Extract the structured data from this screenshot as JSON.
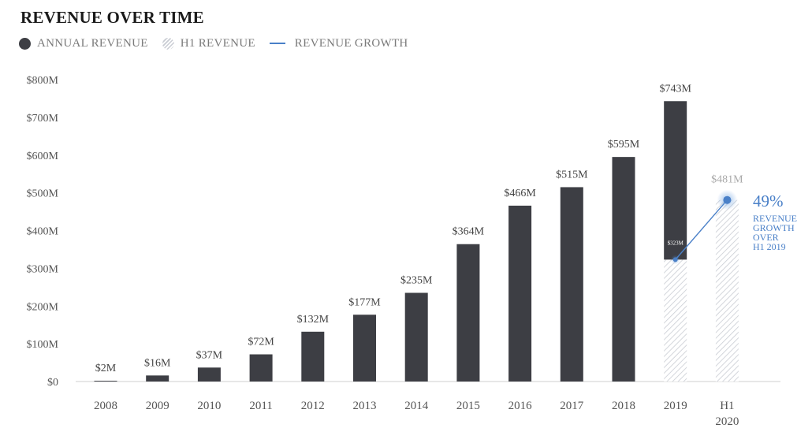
{
  "title": "REVENUE OVER TIME",
  "legend": {
    "annual": "ANNUAL REVENUE",
    "h1": "H1 REVENUE",
    "growth": "REVENUE GROWTH"
  },
  "colors": {
    "annual": "#3d3e44",
    "h1_hatch": "#c9ccd3",
    "growth": "#4a80c8",
    "axis_text": "#555555",
    "h1_label": "#a9a9a9"
  },
  "chart_data": {
    "type": "bar",
    "title": "REVENUE OVER TIME",
    "xlabel": "",
    "ylabel": "",
    "ylim": [
      0,
      800
    ],
    "y_ticks": [
      "$0",
      "$100M",
      "$200M",
      "$300M",
      "$400M",
      "$500M",
      "$600M",
      "$700M",
      "$800M"
    ],
    "grid": false,
    "legend_position": "top-left",
    "categories": [
      "2008",
      "2009",
      "2010",
      "2011",
      "2012",
      "2013",
      "2014",
      "2015",
      "2016",
      "2017",
      "2018",
      "2019",
      "H1 2020"
    ],
    "series": [
      {
        "name": "ANNUAL REVENUE",
        "values": [
          2,
          16,
          37,
          72,
          132,
          177,
          235,
          364,
          466,
          515,
          595,
          743,
          null
        ],
        "labels": [
          "$2M",
          "$16M",
          "$37M",
          "$72M",
          "$132M",
          "$177M",
          "$235M",
          "$364M",
          "$466M",
          "$515M",
          "$595M",
          "$743M",
          ""
        ]
      },
      {
        "name": "H1 REVENUE",
        "values": [
          null,
          null,
          null,
          null,
          null,
          null,
          null,
          null,
          null,
          null,
          null,
          323,
          481
        ],
        "labels": [
          "",
          "",
          "",
          "",
          "",
          "",
          "",
          "",
          "",
          "",
          "",
          "$323M",
          "$481M"
        ]
      },
      {
        "name": "REVENUE GROWTH",
        "values": [
          null,
          null,
          null,
          null,
          null,
          null,
          null,
          null,
          null,
          null,
          null,
          323,
          481
        ]
      }
    ],
    "annotation": {
      "value": "49%",
      "text_lines": [
        "REVENUE",
        "GROWTH",
        "OVER",
        "H1 2019"
      ]
    }
  }
}
